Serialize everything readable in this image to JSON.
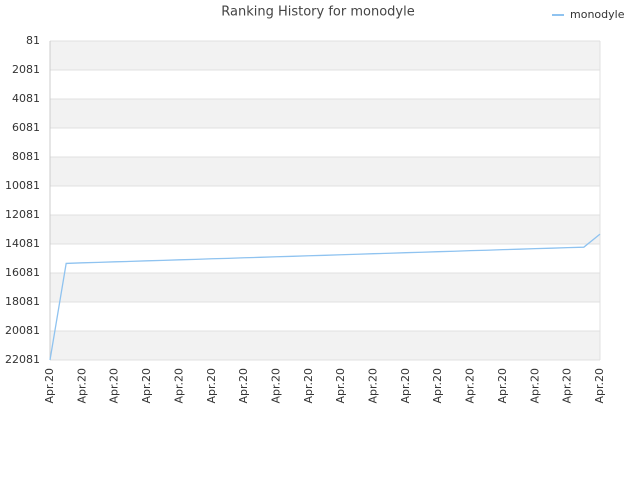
{
  "chart_data": {
    "type": "line",
    "title": "Ranking History for monodyle",
    "categories": [
      "Apr.20",
      null,
      "Apr.20",
      null,
      "Apr.20",
      null,
      "Apr.20",
      null,
      "Apr.20",
      null,
      "Apr.20",
      null,
      "Apr.20",
      null,
      "Apr.20",
      null,
      "Apr.20",
      null,
      "Apr.20",
      null,
      "Apr.20",
      null,
      "Apr.20",
      null,
      "Apr.20",
      null,
      "Apr.20",
      null,
      "Apr.20",
      null,
      "Apr.20",
      null,
      "Apr.20",
      null,
      "Apr.20"
    ],
    "series": [
      {
        "name": "monodyle",
        "color": "#8fc3f0",
        "values": [
          22081,
          15420,
          15380,
          15350,
          15310,
          15280,
          15240,
          15210,
          15170,
          15140,
          15100,
          15070,
          15030,
          15000,
          14960,
          14930,
          14890,
          14860,
          14820,
          14790,
          14750,
          14720,
          14680,
          14650,
          14610,
          14580,
          14540,
          14510,
          14470,
          14440,
          14400,
          14370,
          14330,
          14300,
          13400
        ]
      }
    ],
    "ylim": [
      22081,
      81
    ],
    "yticks": [
      81,
      2081,
      4081,
      6081,
      8081,
      10081,
      12081,
      14081,
      16081,
      18081,
      20081,
      22081
    ],
    "grid": true,
    "legend": "top-right"
  }
}
